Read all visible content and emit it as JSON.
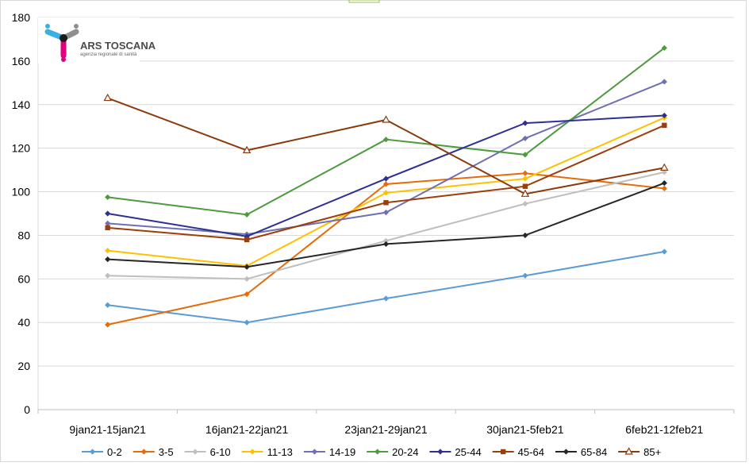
{
  "logo": {
    "title": "ARS TOSCANA",
    "subtitle": "agenzia regionale di sanità"
  },
  "chart_data": {
    "type": "line",
    "title": "",
    "xlabel": "",
    "ylabel": "",
    "ylim": [
      0,
      180
    ],
    "yticks": [
      0,
      20,
      40,
      60,
      80,
      100,
      120,
      140,
      160,
      180
    ],
    "grid": "horizontal",
    "legend_position": "bottom",
    "categories": [
      "9jan21-15jan21",
      "16jan21-22jan21",
      "23jan21-29jan21",
      "30jan21-5feb21",
      "6feb21-12feb21"
    ],
    "series": [
      {
        "name": "0-2",
        "color": "#5b9bd5",
        "marker": "diamond",
        "values": [
          48,
          40,
          51,
          61.5,
          72.5
        ]
      },
      {
        "name": "3-5",
        "color": "#e46c0a",
        "marker": "diamond",
        "values": [
          39,
          53,
          103.5,
          108.5,
          101.5
        ]
      },
      {
        "name": "6-10",
        "color": "#bfbfbf",
        "marker": "diamond",
        "values": [
          61.5,
          60,
          77.5,
          94.5,
          109
        ]
      },
      {
        "name": "11-13",
        "color": "#ffc000",
        "marker": "diamond",
        "values": [
          73,
          66,
          99.5,
          106,
          134
        ]
      },
      {
        "name": "14-19",
        "color": "#6f6fb3",
        "marker": "diamond",
        "values": [
          85.5,
          80.5,
          90.5,
          124.5,
          150.5
        ]
      },
      {
        "name": "20-24",
        "color": "#4e9a3e",
        "marker": "diamond",
        "values": [
          97.5,
          89.5,
          124,
          117,
          166
        ]
      },
      {
        "name": "25-44",
        "color": "#2e3192",
        "marker": "diamond",
        "values": [
          90,
          79.5,
          106,
          131.5,
          135
        ]
      },
      {
        "name": "45-64",
        "color": "#9c3d0c",
        "marker": "square",
        "values": [
          83.5,
          78,
          95,
          102.5,
          130.5
        ]
      },
      {
        "name": "65-84",
        "color": "#262626",
        "marker": "diamond",
        "values": [
          69,
          65.5,
          76,
          80,
          104
        ]
      },
      {
        "name": "85+",
        "color": "#8b3a0e",
        "marker": "triangle",
        "values": [
          143,
          119,
          133,
          99,
          111
        ]
      }
    ]
  }
}
